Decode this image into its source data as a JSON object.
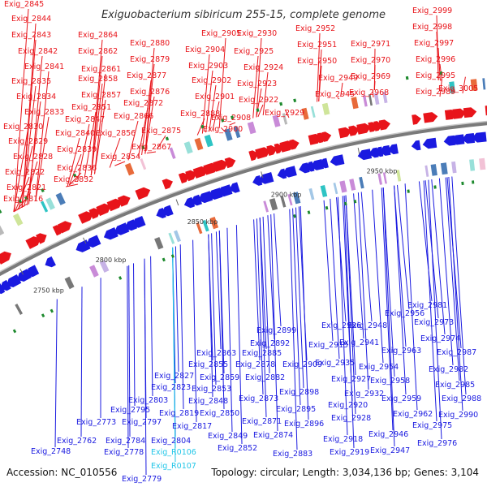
{
  "header": {
    "title": "Exiguobacterium sibiricum 255-15, complete genome"
  },
  "footer": {
    "accession": "Accession: NC_010556",
    "topology": "Topology: circular; Length: 3,034,136 bp; Genes: 3,104"
  },
  "colors": {
    "forward": "#e8141a",
    "reverse": "#1a1ae0",
    "rna": "#21c6e8",
    "backbone": "#7a7a7a"
  },
  "scale_labels": [
    "2750 kbp",
    "2800 kbp",
    "2850 kbp",
    "2900 kbp",
    "2950 kbp"
  ],
  "forward_genes": [
    "Exig_2845",
    "Exig_2844",
    "Exig_2843",
    "Exig_2842",
    "Exig_2841",
    "Exig_2835",
    "Exig_2834",
    "Exig_2833",
    "Exig_2830",
    "Exig_2829",
    "Exig_2828",
    "Exig_2822",
    "Exig_2821",
    "Exig_2816",
    "Exig_2840",
    "Exig_2839",
    "Exig_2836",
    "Exig_2832",
    "Exig_2864",
    "Exig_2862",
    "Exig_2861",
    "Exig_2858",
    "Exig_2857",
    "Exig_2851",
    "Exig_2847",
    "Exig_2856",
    "Exig_2854",
    "Exig_2880",
    "Exig_2879",
    "Exig_2877",
    "Exig_2876",
    "Exig_2872",
    "Exig_2866",
    "Exig_2875",
    "Exig_2867",
    "Exig_2905",
    "Exig_2904",
    "Exig_2903",
    "Exig_2902",
    "Exig_2901",
    "Exig_2908",
    "Exig_2900",
    "Exig_2888",
    "Exig_2930",
    "Exig_2925",
    "Exig_2924",
    "Exig_2923",
    "Exig_2922",
    "Exig_2929",
    "Exig_2952",
    "Exig_2951",
    "Exig_2950",
    "Exig_2949",
    "Exig_2945",
    "Exig_2971",
    "Exig_2970",
    "Exig_2969",
    "Exig_2968",
    "Exig_2999",
    "Exig_2998",
    "Exig_2997",
    "Exig_2996",
    "Exig_2995",
    "Exig_2989",
    "Exig_3005"
  ],
  "reverse_genes": [
    "Exig_2981",
    "Exig_2956",
    "Exig_2948",
    "Exig_2926",
    "Exig_2973",
    "Exig_2974",
    "Exig_2899",
    "Exig_2941",
    "Exig_2963",
    "Exig_2987",
    "Exig_2892",
    "Exig_2915",
    "Exig_2863",
    "Exig_2885",
    "Exig_2935",
    "Exig_2954",
    "Exig_2982",
    "Exig_2855",
    "Exig_2878",
    "Exig_2909",
    "Exig_2958",
    "Exig_2985",
    "Exig_2827",
    "Exig_2859",
    "Exig_2882",
    "Exig_2927",
    "Exig_2823",
    "Exig_2853",
    "Exig_2898",
    "Exig_2932",
    "Exig_2959",
    "Exig_2988",
    "Exig_2803",
    "Exig_2848",
    "Exig_2873",
    "Exig_2920",
    "Exig_2795",
    "Exig_2819",
    "Exig_2850",
    "Exig_2895",
    "Exig_2962",
    "Exig_2990",
    "Exig_2773",
    "Exig_2797",
    "Exig_2817",
    "Exig_2871",
    "Exig_2928",
    "Exig_2975",
    "Exig_2896",
    "Exig_2849",
    "Exig_2874",
    "Exig_2762",
    "Exig_2784",
    "Exig_2804",
    "Exig_2918",
    "Exig_2946",
    "Exig_2976",
    "Exig_2748",
    "Exig_2778",
    "Exig_2852",
    "Exig_2883",
    "Exig_2919",
    "Exig_2947",
    "Exig_2779"
  ],
  "rna_genes": [
    "Exig_R0106",
    "Exig_R0107"
  ]
}
